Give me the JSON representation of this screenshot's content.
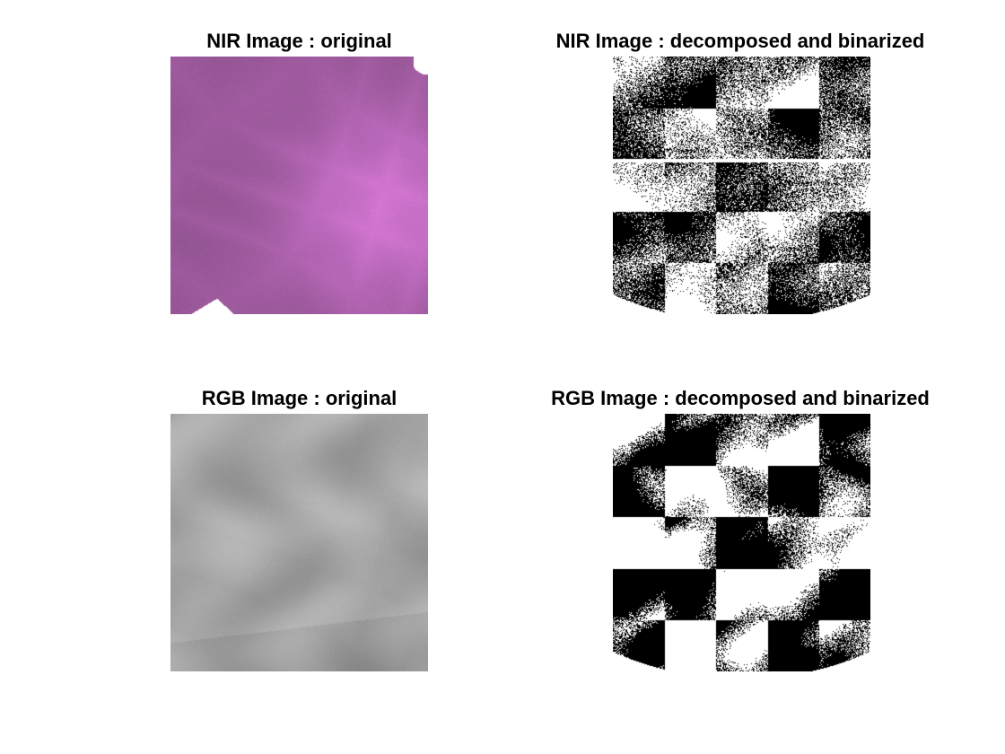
{
  "panels": [
    {
      "id": "nir-original",
      "title": "NIR Image : original"
    },
    {
      "id": "nir-binarized",
      "title": "NIR Image : decomposed and binarized"
    },
    {
      "id": "rgb-original",
      "title": "RGB Image : original"
    },
    {
      "id": "rgb-binarized",
      "title": "RGB Image : decomposed and binarized"
    }
  ],
  "colors": {
    "background": "#ffffff",
    "nir_tint": "#d77bd7",
    "rgb_gray": "#a8a8a8",
    "binary_on": "#ffffff",
    "binary_off": "#000000"
  }
}
